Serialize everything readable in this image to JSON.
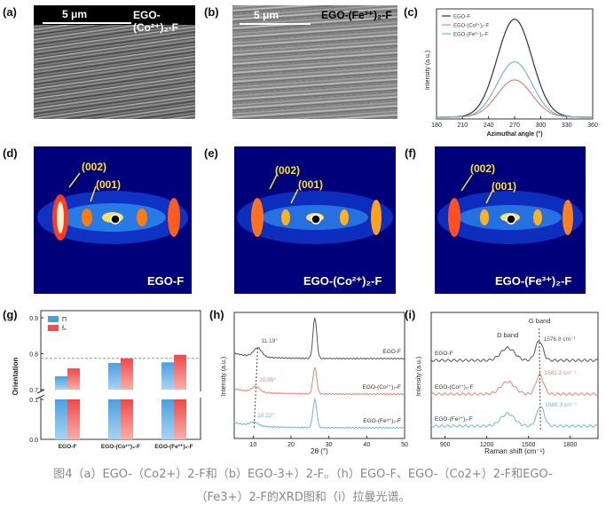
{
  "panels": {
    "a": {
      "letter": "(a)",
      "scale": "5 μm",
      "title": "EGO-(Co²⁺)₂-F"
    },
    "b": {
      "letter": "(b)",
      "scale": "5 μm",
      "title": "EGO-(Fe³⁺)₂-F"
    },
    "c": {
      "letter": "(c)"
    },
    "d": {
      "letter": "(d)",
      "label": "EGO-F",
      "peak1": "(002)",
      "peak2": "(001)"
    },
    "e": {
      "letter": "(e)",
      "label": "EGO-(Co²⁺)₂-F",
      "peak1": "(002)",
      "peak2": "(001)"
    },
    "f": {
      "letter": "(f)",
      "label": "EGO-(Fe³⁺)₂-F",
      "peak1": "(002)",
      "peak2": "(001)"
    },
    "g": {
      "letter": "(g)"
    },
    "h": {
      "letter": "(h)"
    },
    "i": {
      "letter": "(i)"
    }
  },
  "caption": {
    "line1": "图4（a）EGO-（Co2+）2-F和（b）EGO-3+）2-F。（h）EGO-F、EGO-（Co2+）2-F和EGO-",
    "line2": "（Fe3+）2-F的XRD图和（i）拉曼光谱。"
  },
  "chart_data": [
    {
      "type": "line",
      "panel": "c",
      "xlabel": "Azimuthal angle (°)",
      "ylabel": "Intensity (a.u.)",
      "xlim": [
        180,
        360
      ],
      "xticks": [
        "180",
        "210",
        "240",
        "270",
        "300",
        "330",
        "360"
      ],
      "series": [
        {
          "name": "EGO-F",
          "color": "#333333",
          "center": 270,
          "peak": 0.92
        },
        {
          "name": "EGO-(Co²⁺)₂-F",
          "color": "#f08070",
          "center": 270,
          "peak": 0.35
        },
        {
          "name": "EGO-(Fe³⁺)₂-F",
          "color": "#6bb8d8",
          "center": 270,
          "peak": 0.52
        }
      ]
    },
    {
      "type": "bar",
      "panel": "g",
      "ylabel": "Orientation",
      "yticks": [
        "0.0",
        "0.1",
        "0.7",
        "0.8",
        "0.9"
      ],
      "categories": [
        "EGO-F",
        "EGO-(Co²⁺)₂-F",
        "EGO-(Fe³⁺)₂-F"
      ],
      "series": [
        {
          "name": "Π",
          "color": "#4a9fd8",
          "values": [
            0.737,
            0.774,
            0.776
          ]
        },
        {
          "name": "fₙ",
          "color": "#f05050",
          "values": [
            0.759,
            0.787,
            0.797
          ]
        }
      ],
      "reference_line": 0.787
    },
    {
      "type": "line",
      "panel": "h",
      "xlabel": "2θ (°)",
      "ylabel": "Intensity (a.u.)",
      "xlim": [
        5,
        50
      ],
      "xticks": [
        "10",
        "20",
        "30",
        "40",
        "50"
      ],
      "series": [
        {
          "name": "EGO-F",
          "color": "#555555",
          "peak_angle": "11.19°"
        },
        {
          "name": "EGO-(Co²⁺)₂-F",
          "color": "#f08070",
          "peak_angle": "10.69°"
        },
        {
          "name": "EGO-(Fe³⁺)₂-F",
          "color": "#6bb8d8",
          "peak_angle": "10.22°"
        }
      ]
    },
    {
      "type": "line",
      "panel": "i",
      "xlabel": "Raman shift (cm⁻¹)",
      "ylabel": "Intensity (a.u.)",
      "xticks": [
        "900",
        "1200",
        "1500",
        "1800"
      ],
      "annotations": [
        "D band",
        "G band"
      ],
      "series": [
        {
          "name": "EGO-F",
          "color": "#555555",
          "g_band": "1576.8 cm⁻¹"
        },
        {
          "name": "EGO-(Co²⁺)₂-F",
          "color": "#f08070",
          "g_band": "1581.2 cm⁻¹"
        },
        {
          "name": "EGO-(Fe³⁺)₂-F",
          "color": "#6bb8d8",
          "g_band": "1586.3 cm⁻¹"
        }
      ]
    }
  ]
}
